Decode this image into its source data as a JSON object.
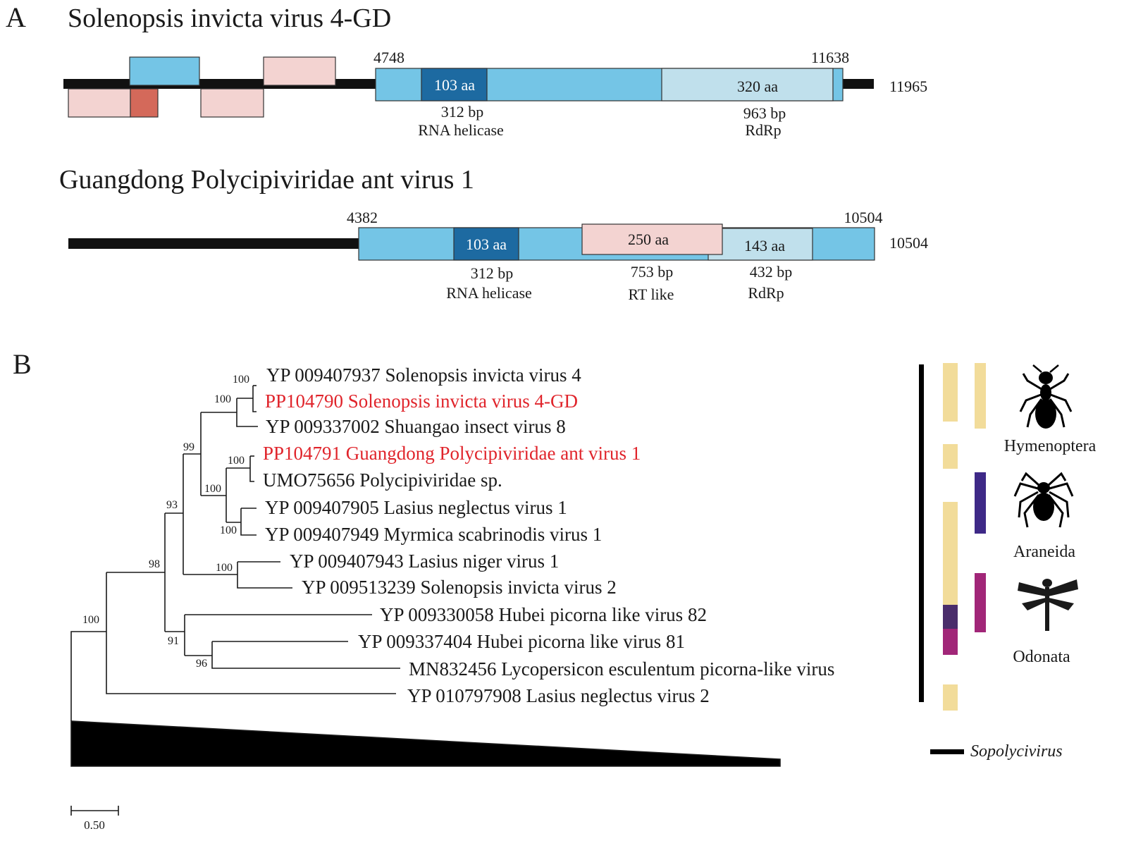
{
  "panel_a": {
    "label": "A",
    "genome1": {
      "title": "Solenopsis invicta virus 4-GD",
      "start": "4748",
      "end": "11638",
      "length": "11965",
      "helicase": {
        "aa": "103 aa",
        "bp": "312 bp",
        "name": "RNA helicase"
      },
      "rdrp": {
        "aa": "320 aa",
        "bp": "963 bp",
        "name": "RdRp"
      }
    },
    "genome2": {
      "title": "Guangdong Polycipiviridae ant virus 1",
      "start": "4382",
      "end": "10504",
      "length": "10504",
      "helicase": {
        "aa": "103 aa",
        "bp": "312 bp",
        "name": "RNA helicase"
      },
      "rt": {
        "aa": "250 aa",
        "bp": "753 bp",
        "name": "RT like"
      },
      "rdrp": {
        "aa": "143 aa",
        "bp": "432 bp",
        "name": "RdRp"
      }
    }
  },
  "panel_b": {
    "label": "B",
    "leaves": [
      {
        "text": "YP 009407937 Solenopsis invicta virus 4",
        "highlight": false
      },
      {
        "text": "PP104790 Solenopsis invicta virus 4-GD",
        "highlight": true
      },
      {
        "text": "YP 009337002 Shuangao insect virus 8",
        "highlight": false
      },
      {
        "text": "PP104791 Guangdong Polycipiviridae ant virus 1",
        "highlight": true
      },
      {
        "text": "UMO75656 Polycipiviridae sp.",
        "highlight": false
      },
      {
        "text": "YP 009407905 Lasius neglectus virus 1",
        "highlight": false
      },
      {
        "text": "YP 009407949 Myrmica scabrinodis virus 1",
        "highlight": false
      },
      {
        "text": "YP 009407943 Lasius niger virus 1",
        "highlight": false
      },
      {
        "text": "YP 009513239 Solenopsis invicta virus 2",
        "highlight": false
      },
      {
        "text": "YP 009330058 Hubei picorna like virus 82",
        "highlight": false
      },
      {
        "text": "YP 009337404 Hubei picorna like virus 81",
        "highlight": false
      },
      {
        "text": "MN832456 Lycopersicon esculentum picorna-like virus",
        "highlight": false
      },
      {
        "text": "YP 010797908 Lasius neglectus virus 2",
        "highlight": false
      }
    ],
    "bootstrap": [
      "100",
      "100",
      "99",
      "100",
      "100",
      "100",
      "93",
      "100",
      "98",
      "91",
      "96",
      "100"
    ],
    "hosts": {
      "hymenoptera": "Hymenoptera",
      "araneida": "Araneida",
      "odonata": "Odonata"
    },
    "legend_genus": "Sopolycivirus",
    "scale_label": "0.50"
  },
  "colors": {
    "blue": "#74c5e6",
    "dark_blue": "#1d6aa1",
    "light_blue": "#c0e0ec",
    "pink": "#f3d3d1",
    "red_orf": "#d4695a",
    "highlight_text": "#e0242b",
    "hymenoptera_bar": "#f2dc9a",
    "araneida_bar": "#3e2987",
    "odonata_bar": "#a12678",
    "overlap_bar": "#4a2d6b"
  }
}
